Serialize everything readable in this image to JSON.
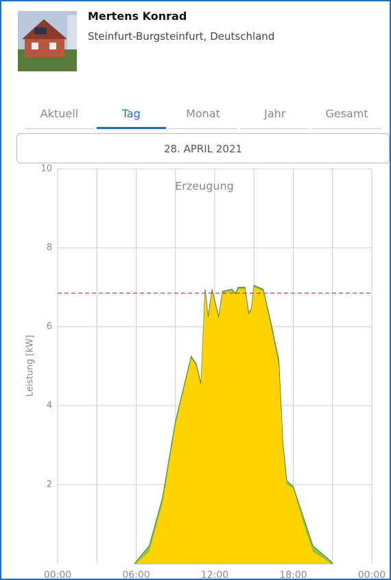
{
  "header": {
    "name": "Mertens Konrad",
    "location": "Steinfurt-Burgsteinfurt, Deutschland"
  },
  "tabs": {
    "items": [
      "Aktuell",
      "Tag",
      "Monat",
      "Jahr",
      "Gesamt"
    ],
    "active": 1
  },
  "date": "28. APRIL 2021",
  "chart_data": {
    "type": "area",
    "title": "Erzeugung",
    "y_label": "Leistung [kW]",
    "x": [
      5.9,
      6.0,
      7.0,
      8.0,
      9.0,
      10.2,
      10.6,
      10.95,
      11.27,
      11.5,
      11.8,
      12.3,
      12.6,
      13.3,
      13.6,
      13.8,
      14.3,
      14.6,
      14.8,
      15.0,
      15.7,
      16.3,
      16.9,
      17.2,
      17.5,
      18.0,
      18.8,
      19.5,
      20.9,
      21.0
    ],
    "series": [
      {
        "color": "#8dc63f",
        "values": [
          0,
          0.05,
          0.45,
          1.65,
          3.6,
          5.25,
          5.05,
          4.55,
          6.95,
          6.25,
          6.95,
          6.25,
          6.9,
          6.95,
          6.85,
          7.0,
          7.0,
          6.35,
          6.45,
          7.05,
          6.95,
          6.1,
          5.15,
          3.1,
          2.1,
          1.95,
          1.15,
          0.45,
          0.05,
          0
        ]
      },
      {
        "color": "#ffd200",
        "values": [
          0,
          0,
          0.3,
          1.5,
          3.5,
          5.2,
          5.0,
          4.5,
          6.9,
          6.2,
          6.9,
          6.2,
          6.85,
          6.9,
          6.8,
          6.95,
          6.95,
          6.3,
          6.4,
          7.0,
          6.9,
          6.0,
          5.0,
          3.0,
          2.0,
          1.9,
          1.0,
          0.3,
          0,
          0
        ]
      }
    ],
    "reference_line": 6.85,
    "reference_color": "#c0404f",
    "xlim": [
      0,
      24
    ],
    "xticks": [
      {
        "value": 0,
        "label": "00:00"
      },
      {
        "value": 3,
        "label": null
      },
      {
        "value": 6,
        "label": "06:00"
      },
      {
        "value": 9,
        "label": null
      },
      {
        "value": 12,
        "label": "12:00"
      },
      {
        "value": 15,
        "label": null
      },
      {
        "value": 18,
        "label": "18:00"
      },
      {
        "value": 21,
        "label": null
      },
      {
        "value": 24,
        "label": "00:00"
      }
    ],
    "ylim": [
      0,
      10
    ],
    "yticks": [
      2,
      4,
      6,
      8,
      10
    ],
    "grid": true
  }
}
